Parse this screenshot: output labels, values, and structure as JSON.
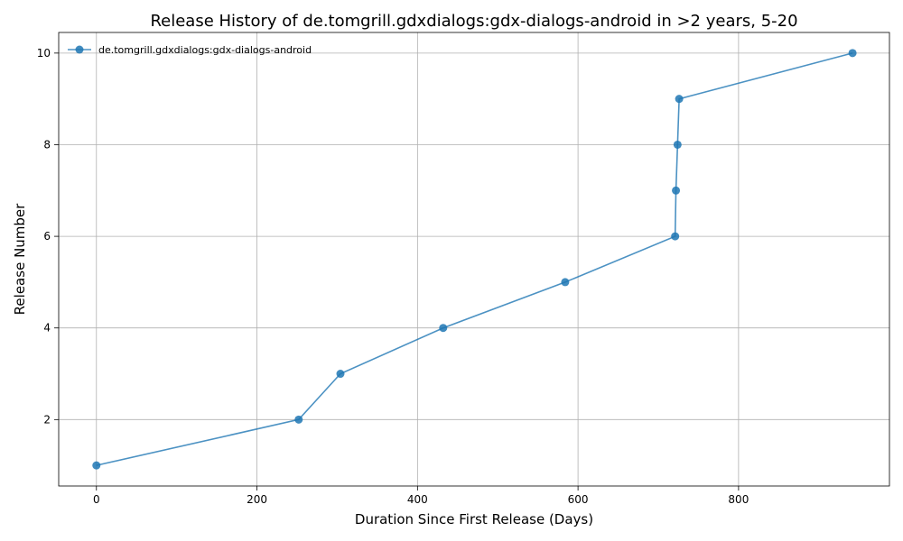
{
  "chart_data": {
    "type": "line",
    "title": "Release History of de.tomgrill.gdxdialogs:gdx-dialogs-android in >2 years, 5-20",
    "xlabel": "Duration Since First Release (Days)",
    "ylabel": "Release Number",
    "xlim": [
      -47,
      988
    ],
    "ylim": [
      0.55,
      10.45
    ],
    "xticks": [
      0,
      200,
      400,
      600,
      800
    ],
    "yticks": [
      2,
      4,
      6,
      8,
      10
    ],
    "grid": true,
    "legend_position": "top-left",
    "series": [
      {
        "name": "de.tomgrill.gdxdialogs:gdx-dialogs-android",
        "color": "#1f77b4",
        "marker": "circle",
        "x": [
          0,
          252,
          304,
          432,
          584,
          721,
          722,
          724,
          726,
          942
        ],
        "y": [
          1,
          2,
          3,
          4,
          5,
          6,
          7,
          8,
          9,
          10
        ]
      }
    ]
  }
}
